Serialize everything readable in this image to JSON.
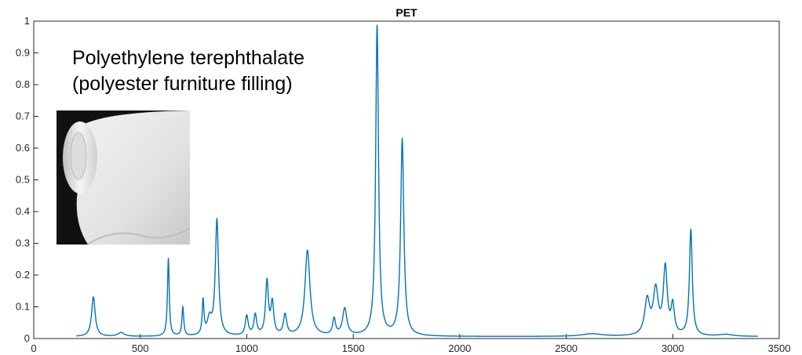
{
  "chart_data": {
    "type": "line",
    "title": "PET",
    "xlabel": "",
    "ylabel": "",
    "xlim": [
      0,
      3500
    ],
    "ylim": [
      0,
      1
    ],
    "xticks": [
      "0",
      "500",
      "1000",
      "1500",
      "2000",
      "2500",
      "3000",
      "3500"
    ],
    "yticks": [
      "0",
      "0.1",
      "0.2",
      "0.3",
      "0.4",
      "0.5",
      "0.6",
      "0.7",
      "0.8",
      "0.9",
      "1"
    ],
    "grid": false,
    "line_color": "#0072BD",
    "baseline": 0.006,
    "x_range": [
      200,
      3400
    ],
    "peaks": [
      {
        "x": 280,
        "y": 0.125
      },
      {
        "x": 410,
        "y": 0.012
      },
      {
        "x": 632,
        "y": 0.245
      },
      {
        "x": 700,
        "y": 0.092
      },
      {
        "x": 795,
        "y": 0.108
      },
      {
        "x": 825,
        "y": 0.05
      },
      {
        "x": 860,
        "y": 0.365
      },
      {
        "x": 1000,
        "y": 0.062
      },
      {
        "x": 1040,
        "y": 0.065
      },
      {
        "x": 1095,
        "y": 0.17
      },
      {
        "x": 1120,
        "y": 0.1
      },
      {
        "x": 1180,
        "y": 0.065
      },
      {
        "x": 1285,
        "y": 0.27
      },
      {
        "x": 1410,
        "y": 0.052
      },
      {
        "x": 1460,
        "y": 0.085
      },
      {
        "x": 1612,
        "y": 0.98
      },
      {
        "x": 1730,
        "y": 0.62
      },
      {
        "x": 2620,
        "y": 0.008
      },
      {
        "x": 2880,
        "y": 0.11
      },
      {
        "x": 2920,
        "y": 0.14
      },
      {
        "x": 2965,
        "y": 0.21
      },
      {
        "x": 3000,
        "y": 0.09
      },
      {
        "x": 3085,
        "y": 0.335
      },
      {
        "x": 3250,
        "y": 0.006
      }
    ]
  },
  "annotation": {
    "line1": "Polyethylene terephthalate",
    "line2": "(polyester furniture filling)"
  },
  "photo": {
    "subject": "rolled white polyester fiber sheet"
  }
}
